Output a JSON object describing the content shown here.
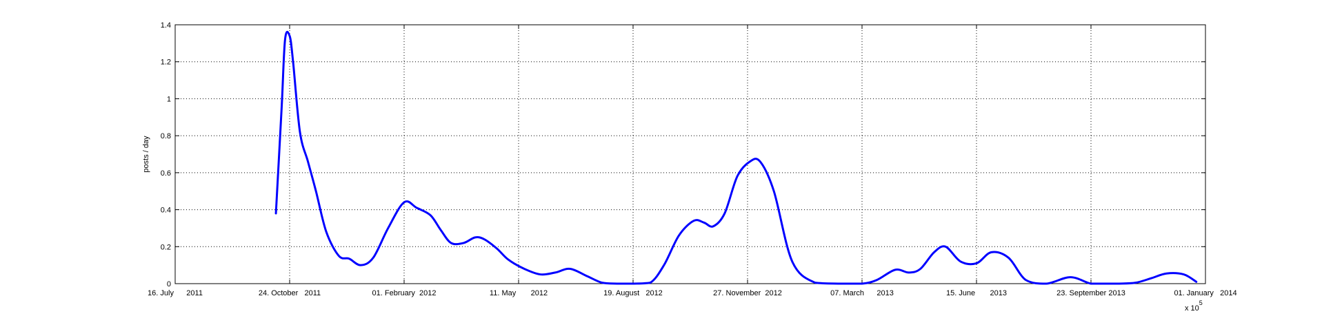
{
  "chart_data": {
    "type": "line",
    "ylabel": "posts / day",
    "ylim": [
      0,
      1.4
    ],
    "xlim": [
      "2011-07-16",
      "2014-01-01"
    ],
    "y_ticks": [
      "0",
      "0.2",
      "0.4",
      "0.6",
      "0.8",
      "1",
      "1.2",
      "1.4"
    ],
    "x_tick_dates": [
      "2011-07-16",
      "2011-10-24",
      "2012-02-01",
      "2012-05-11",
      "2012-08-19",
      "2012-11-27",
      "2013-03-07",
      "2013-06-15",
      "2013-09-23",
      "2014-01-01"
    ],
    "x_tick_labels": [
      "16. July      2011",
      "24. October   2011",
      "01. February  2012",
      "11. May       2012",
      "19. August   2012",
      "27. November  2012",
      "07. March      2013",
      "15. June       2013",
      "23. September 2013",
      "01. January   2014"
    ],
    "axis_multiplier_label": "x 10",
    "axis_multiplier_exponent": "5",
    "grid": true,
    "line_color": "#0000ff",
    "series": [
      {
        "x": [
          "2011-10-12",
          "2011-10-17",
          "2011-10-20",
          "2011-10-24",
          "2011-10-27",
          "2011-11-02",
          "2011-11-09",
          "2011-11-16",
          "2011-11-25",
          "2011-12-06",
          "2011-12-15",
          "2011-12-25",
          "2012-01-05",
          "2012-01-18",
          "2012-02-01",
          "2012-02-12",
          "2012-02-24",
          "2012-03-04",
          "2012-03-13",
          "2012-03-24",
          "2012-04-03",
          "2012-04-11",
          "2012-04-22",
          "2012-05-02",
          "2012-05-16",
          "2012-05-30",
          "2012-06-12",
          "2012-06-25",
          "2012-07-10",
          "2012-07-23",
          "2012-08-05",
          "2012-08-19",
          "2012-09-03",
          "2012-09-15",
          "2012-09-28",
          "2012-10-11",
          "2012-10-20",
          "2012-10-28",
          "2012-11-07",
          "2012-11-18",
          "2012-11-29",
          "2012-12-08",
          "2012-12-20",
          "2013-01-05",
          "2013-01-25",
          "2013-02-15",
          "2013-03-07",
          "2013-03-20",
          "2013-04-05",
          "2013-04-17",
          "2013-04-27",
          "2013-05-09",
          "2013-05-19",
          "2013-06-01",
          "2013-06-15",
          "2013-06-28",
          "2013-07-13",
          "2013-07-28",
          "2013-08-15",
          "2013-09-05",
          "2013-09-23",
          "2013-10-06",
          "2013-10-17",
          "2013-11-01",
          "2013-11-15",
          "2013-11-28",
          "2013-12-13",
          "2013-12-24"
        ],
        "y": [
          0.38,
          0.95,
          1.32,
          1.34,
          1.2,
          0.82,
          0.66,
          0.5,
          0.28,
          0.15,
          0.135,
          0.1,
          0.14,
          0.3,
          0.44,
          0.41,
          0.37,
          0.29,
          0.22,
          0.22,
          0.25,
          0.24,
          0.19,
          0.13,
          0.08,
          0.05,
          0.06,
          0.08,
          0.04,
          0.005,
          0.0,
          0.0,
          0.005,
          0.1,
          0.26,
          0.34,
          0.33,
          0.31,
          0.38,
          0.58,
          0.66,
          0.66,
          0.5,
          0.12,
          0.005,
          0.0,
          0.0,
          0.02,
          0.075,
          0.06,
          0.08,
          0.17,
          0.2,
          0.12,
          0.11,
          0.17,
          0.14,
          0.02,
          0.0,
          0.035,
          0.0,
          0.0,
          0.0,
          0.005,
          0.03,
          0.055,
          0.05,
          0.01
        ]
      }
    ]
  }
}
